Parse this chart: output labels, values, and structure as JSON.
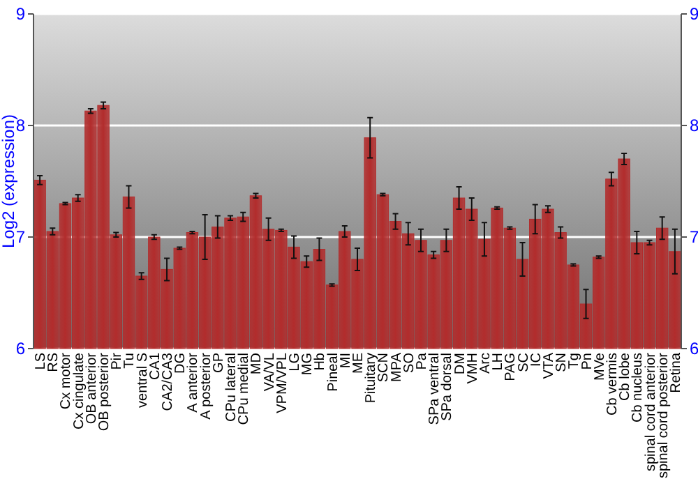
{
  "chart_data": {
    "type": "bar",
    "ylabel": "Log2 (expression)",
    "categories": [
      "LS",
      "RS",
      "Cx motor",
      "Cx cingulate",
      "OB anterior",
      "OB posterior",
      "Pir",
      "Tu",
      "ventral S",
      "CA1",
      "CA2/CA3",
      "DG",
      "A anterior",
      "A posterior",
      "GP",
      "CPu lateral",
      "CPu medial",
      "MD",
      "VA/VL",
      "VPM/VPL",
      "LG",
      "MG",
      "Hb",
      "Pineal",
      "MI",
      "ME",
      "Pituitary",
      "SCN",
      "MPA",
      "SO",
      "Pa",
      "SPa ventral",
      "SPa dorsal",
      "DM",
      "VMH",
      "Arc",
      "LH",
      "PAG",
      "SC",
      "IC",
      "VTA",
      "SN",
      "Tg",
      "Pn",
      "MVe",
      "Cb vermis",
      "Cb lobe",
      "Cb nucleus",
      "spinal cord anterior",
      "spinal cord posterior",
      "Retina"
    ],
    "values": [
      7.51,
      7.05,
      7.3,
      7.35,
      8.13,
      8.18,
      7.02,
      7.36,
      6.65,
      7.0,
      6.71,
      6.9,
      7.04,
      7.0,
      7.09,
      7.17,
      7.18,
      7.37,
      7.07,
      7.06,
      6.91,
      6.78,
      6.89,
      6.57,
      7.05,
      6.8,
      7.89,
      7.38,
      7.14,
      7.03,
      6.97,
      6.84,
      6.97,
      7.35,
      7.25,
      6.98,
      7.26,
      7.08,
      6.8,
      7.16,
      7.25,
      7.04,
      6.75,
      6.4,
      6.82,
      7.52,
      7.7,
      6.95,
      6.95,
      7.08,
      6.87
    ],
    "errors": [
      0.04,
      0.03,
      0.01,
      0.03,
      0.02,
      0.03,
      0.02,
      0.1,
      0.03,
      0.02,
      0.1,
      0.01,
      0.01,
      0.2,
      0.1,
      0.02,
      0.04,
      0.02,
      0.1,
      0.01,
      0.1,
      0.05,
      0.1,
      0.01,
      0.05,
      0.1,
      0.18,
      0.01,
      0.07,
      0.1,
      0.1,
      0.03,
      0.1,
      0.1,
      0.1,
      0.15,
      0.01,
      0.01,
      0.15,
      0.13,
      0.03,
      0.05,
      0.01,
      0.13,
      0.01,
      0.06,
      0.05,
      0.1,
      0.02,
      0.1,
      0.2
    ],
    "color": "#b22c2c",
    "ylim": [
      6,
      9
    ],
    "yticks": [
      6,
      7,
      8,
      9
    ],
    "y2lim": [
      6,
      9
    ],
    "y2ticks": [
      6,
      7,
      8,
      9
    ],
    "grid": "y"
  }
}
